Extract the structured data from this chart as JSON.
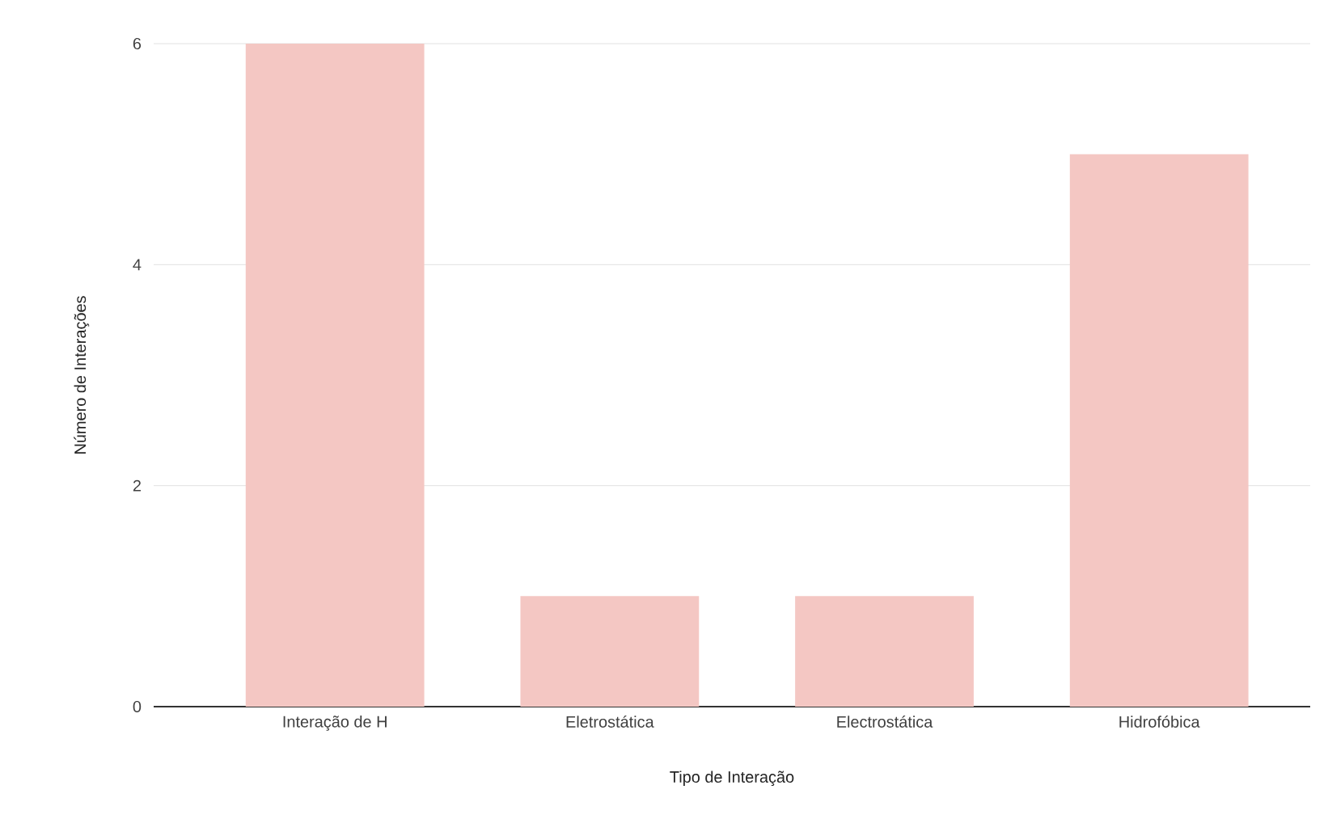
{
  "chart_data": {
    "type": "bar",
    "xlabel": "Tipo de Interação",
    "ylabel": "Número de Interações",
    "categories": [
      "Interação de H",
      "Eletrostática",
      "Electrostática",
      "Hidrofóbica"
    ],
    "values": [
      6,
      1,
      1,
      5
    ],
    "color": "#f4c7c3",
    "ylim": [
      0,
      6
    ],
    "yticks": [
      0,
      2,
      4,
      6
    ],
    "grid": "y"
  }
}
